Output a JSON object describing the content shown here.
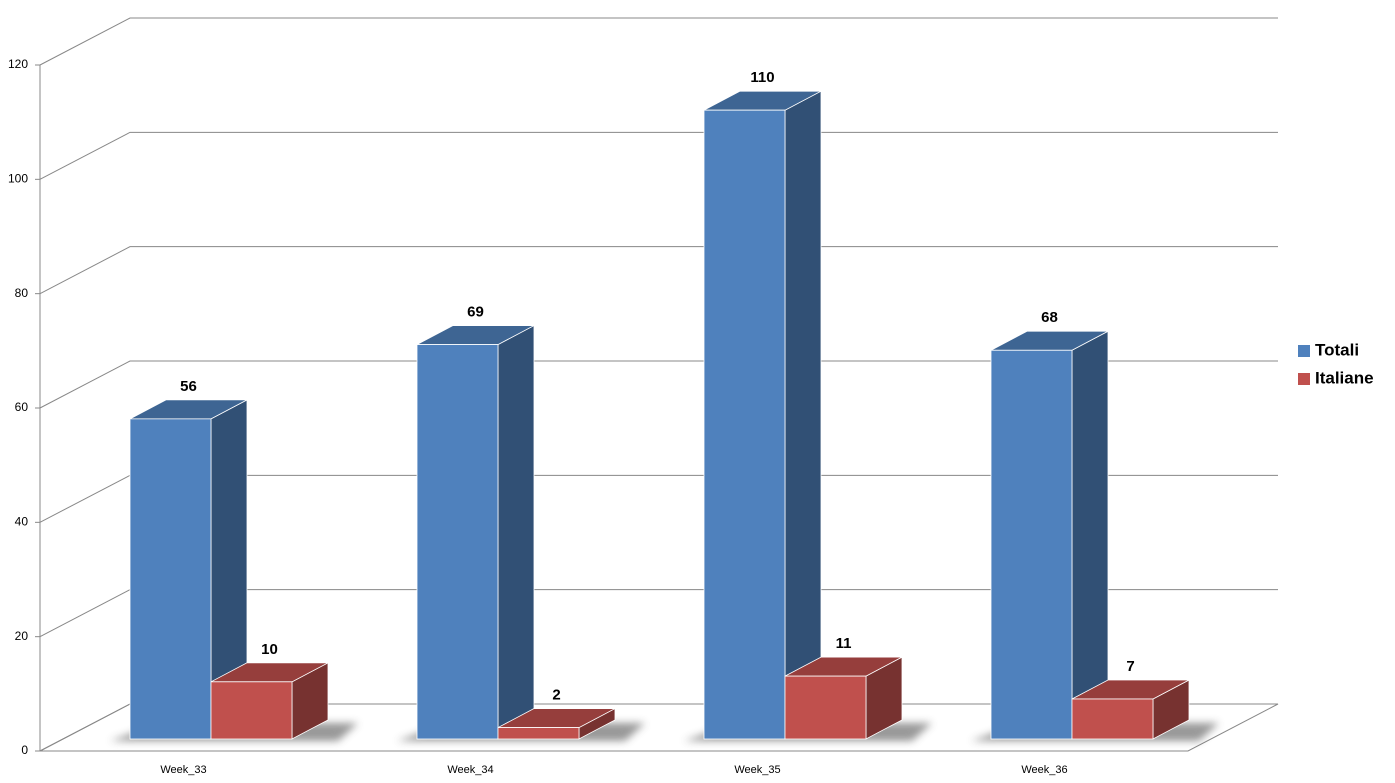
{
  "chart_data": {
    "type": "bar3d",
    "categories": [
      "Week_33",
      "Week_34",
      "Week_35",
      "Week_36"
    ],
    "series": [
      {
        "name": "Totali",
        "color": "#4f81bd",
        "values": [
          56,
          69,
          110,
          68
        ]
      },
      {
        "name": "Italiane",
        "color": "#c0504d",
        "values": [
          10,
          2,
          11,
          7
        ]
      }
    ],
    "ylim": [
      0,
      120
    ],
    "yticks": [
      0,
      20,
      40,
      60,
      80,
      100,
      120
    ],
    "grid": true,
    "legend": "right"
  }
}
